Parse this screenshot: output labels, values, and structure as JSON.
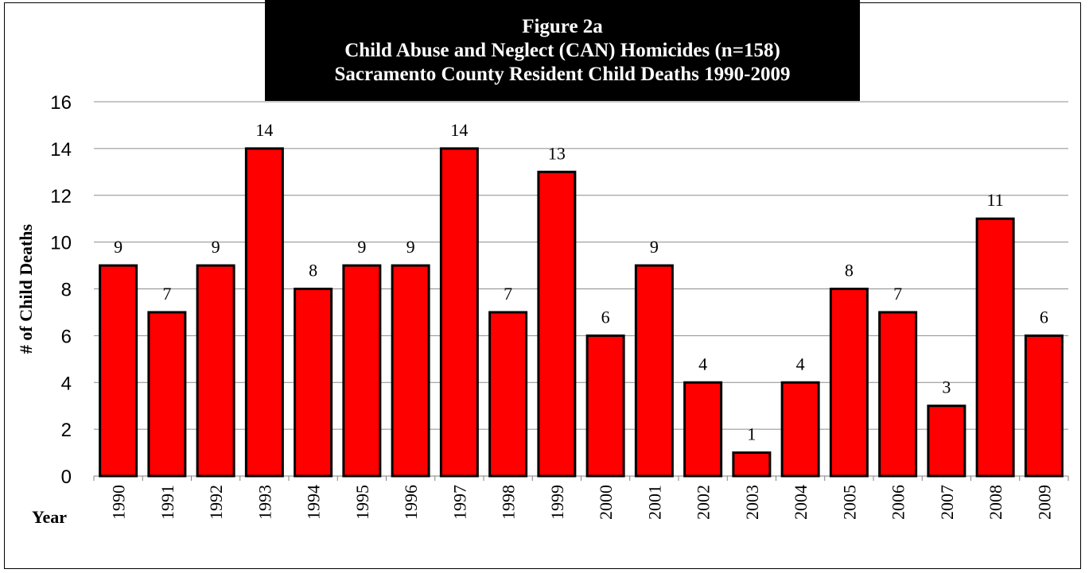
{
  "chart_data": {
    "type": "bar",
    "title": [
      "Figure 2a",
      "Child Abuse and Neglect (CAN) Homicides (n=158)",
      "Sacramento County Resident Child Deaths 1990-2009"
    ],
    "xlabel": "Year",
    "ylabel": "# of Child Deaths",
    "categories": [
      "1990",
      "1991",
      "1992",
      "1993",
      "1994",
      "1995",
      "1996",
      "1997",
      "1998",
      "1999",
      "2000",
      "2001",
      "2002",
      "2003",
      "2004",
      "2005",
      "2006",
      "2007",
      "2008",
      "2009"
    ],
    "values": [
      9,
      7,
      9,
      14,
      8,
      9,
      9,
      14,
      7,
      13,
      6,
      9,
      4,
      1,
      4,
      8,
      7,
      3,
      11,
      6
    ],
    "ylim": [
      0,
      16
    ],
    "yticks": [
      0,
      2,
      4,
      6,
      8,
      10,
      12,
      14,
      16
    ],
    "grid": true,
    "legend": "none",
    "bar_color": "#ff0000",
    "bar_edge_color": "#000000",
    "title_background": "#000000",
    "title_color": "#ffffff"
  }
}
